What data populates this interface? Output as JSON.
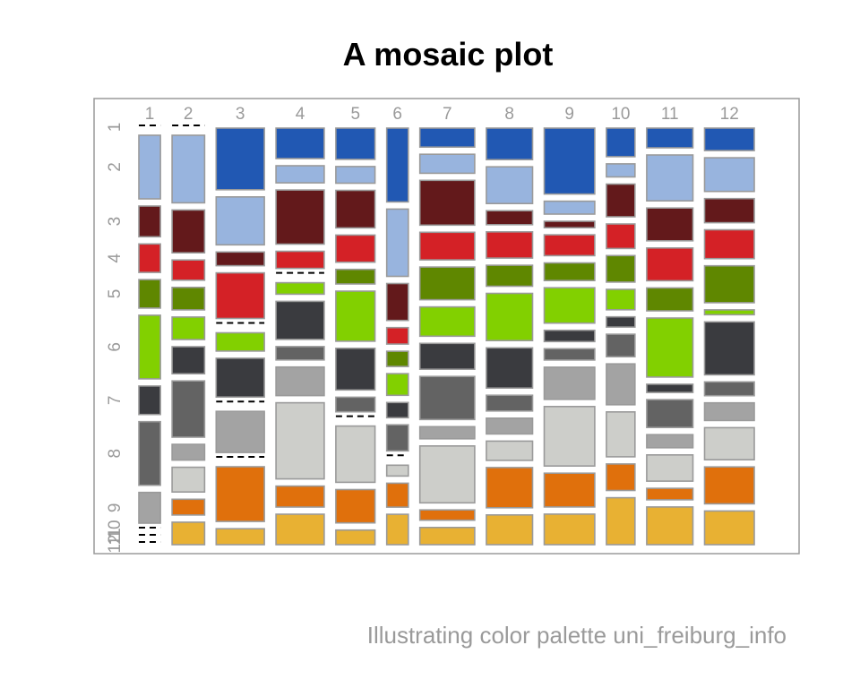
{
  "title": "A mosaic plot",
  "caption": "Illustrating color palette uni_freiburg_info",
  "palette": [
    "#2158B3",
    "#98B4DE",
    "#63191B",
    "#D42126",
    "#5F8700",
    "#82D000",
    "#3A3B3F",
    "#636363",
    "#A3A3A3",
    "#CDCECA",
    "#E0700C",
    "#E8B133"
  ],
  "border_color": "#9a9a9a",
  "chart_data": {
    "type": "mosaic",
    "x_levels": [
      "1",
      "2",
      "3",
      "4",
      "5",
      "6",
      "7",
      "8",
      "9",
      "10",
      "11",
      "12"
    ],
    "y_levels": [
      "1",
      "2",
      "3",
      "4",
      "5",
      "6",
      "7",
      "8",
      "9",
      "10",
      "11",
      "12"
    ],
    "column_widths": [
      0.55,
      0.83,
      1.23,
      1.23,
      1.0,
      0.55,
      1.4,
      1.18,
      1.29,
      0.73,
      1.18,
      1.27
    ],
    "cell_values": [
      [
        0,
        14.5,
        7,
        6.5,
        6.5,
        14.5,
        6.5,
        14.5,
        7,
        0,
        0,
        0
      ],
      [
        0,
        15,
        9.5,
        4.5,
        5,
        5,
        6,
        12.5,
        3.5,
        5.5,
        3.5,
        5
      ],
      [
        13.5,
        10.5,
        3,
        10,
        0,
        4,
        8.5,
        0,
        9,
        0,
        12,
        3.5
      ],
      [
        8,
        4.5,
        14.2,
        4.5,
        0,
        3,
        10,
        3.5,
        7.5,
        20,
        5.5,
        8
      ],
      [
        7.5,
        4,
        9,
        6.5,
        3.5,
        12,
        10,
        3.5,
        0,
        13.5,
        8,
        3.5
      ],
      [
        17,
        15.5,
        8.5,
        3.8,
        3.5,
        5,
        3.5,
        6,
        0,
        2.5,
        5.5,
        7
      ],
      [
        5.5,
        5.5,
        13,
        8,
        9.5,
        8.5,
        7.5,
        12.5,
        3.5,
        16.5,
        3,
        5
      ],
      [
        9,
        10.5,
        4,
        7.5,
        6,
        13.5,
        11.5,
        4.5,
        4.5,
        5.5,
        11.5,
        8.5
      ],
      [
        20.5,
        4,
        2,
        6.5,
        5.5,
        11,
        3.5,
        3.5,
        10,
        18.5,
        10.5,
        9.5
      ],
      [
        7,
        3.2,
        8,
        6,
        6.5,
        5,
        2.5,
        5.5,
        10,
        11,
        6.5,
        11.5
      ],
      [
        6,
        14,
        10,
        10,
        7,
        18,
        2.5,
        8.5,
        4,
        8,
        3.5,
        11.5
      ],
      [
        7,
        10.5,
        7.5,
        9,
        11.5,
        1.5,
        16.5,
        4.3,
        5.5,
        10,
        11.5,
        10.5
      ]
    ],
    "xlabel": "",
    "ylabel": "",
    "legend": "none"
  }
}
